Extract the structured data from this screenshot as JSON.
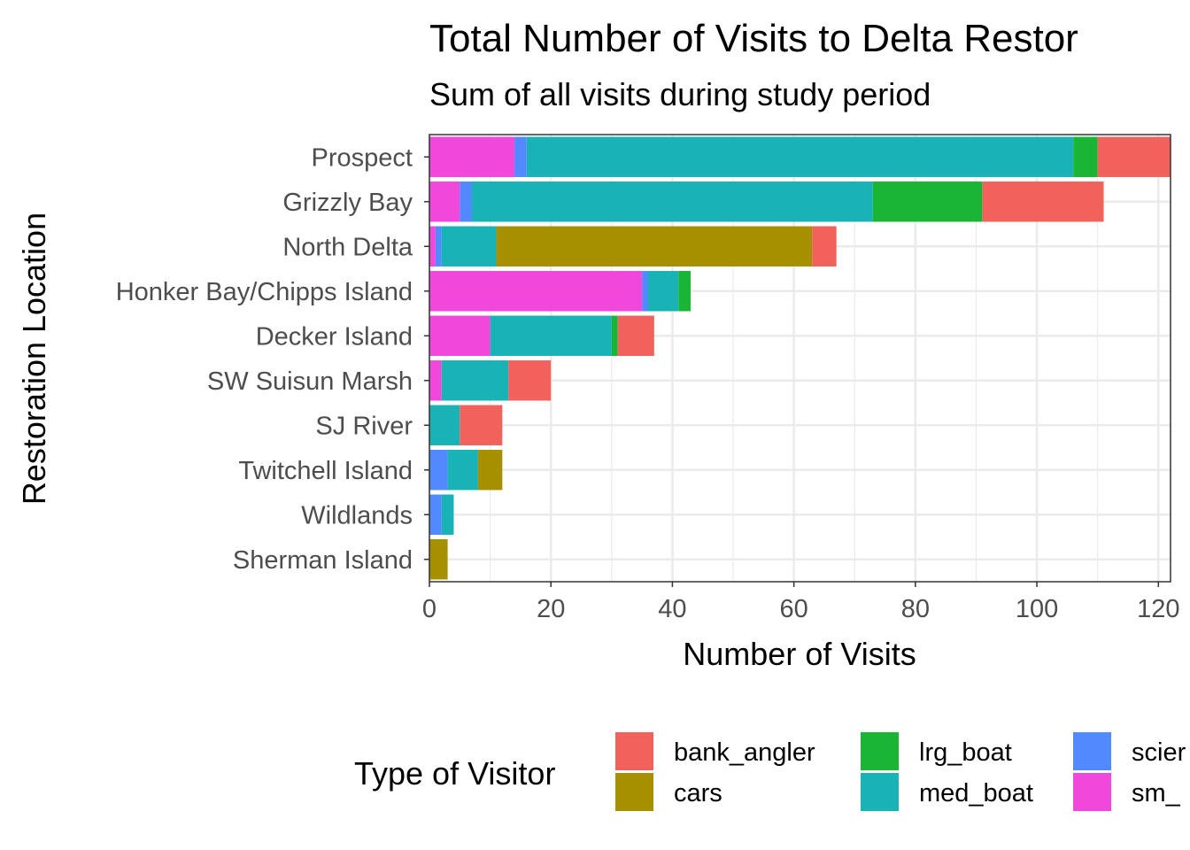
{
  "chart_data": {
    "type": "bar",
    "orientation": "horizontal",
    "stacked": true,
    "title": "Total Number of Visits to Delta Restor",
    "subtitle": "Sum of all visits during study period",
    "xlabel": "Number of Visits",
    "ylabel": "Restoration Location",
    "xlim": [
      0,
      122
    ],
    "x_ticks": [
      "0",
      "20",
      "40",
      "60",
      "80",
      "100",
      "120"
    ],
    "grid": true,
    "legend_position": "bottom",
    "legend_title": "Type of Visitor",
    "categories": [
      "Sherman Island",
      "Wildlands",
      "Twitchell Island",
      "SJ River",
      "SW Suisun Marsh",
      "Decker Island",
      "Honker Bay/Chipps Island",
      "North Delta",
      "Grizzly Bay",
      "Prospect"
    ],
    "series": [
      {
        "name": "sm_",
        "color": "#F148DC",
        "values": [
          0,
          0,
          0,
          0,
          2,
          10,
          35,
          1,
          5,
          14
        ]
      },
      {
        "name": "scier",
        "color": "#518AFE",
        "values": [
          0,
          2,
          3,
          0,
          0,
          0,
          1,
          1,
          2,
          2
        ]
      },
      {
        "name": "med_boat",
        "color": "#19B3B6",
        "values": [
          0,
          2,
          5,
          5,
          11,
          20,
          5,
          9,
          66,
          90
        ]
      },
      {
        "name": "lrg_boat",
        "color": "#1AB534",
        "values": [
          0,
          0,
          0,
          0,
          0,
          1,
          2,
          0,
          18,
          4
        ]
      },
      {
        "name": "cars",
        "color": "#A79000",
        "values": [
          3,
          0,
          4,
          0,
          0,
          0,
          0,
          52,
          0,
          0
        ]
      },
      {
        "name": "bank_angler",
        "color": "#F2625C",
        "values": [
          0,
          0,
          0,
          7,
          7,
          6,
          0,
          4,
          20,
          12
        ]
      }
    ],
    "legend_order": [
      "bank_angler",
      "cars",
      "lrg_boat",
      "med_boat",
      "scier",
      "sm_"
    ]
  }
}
